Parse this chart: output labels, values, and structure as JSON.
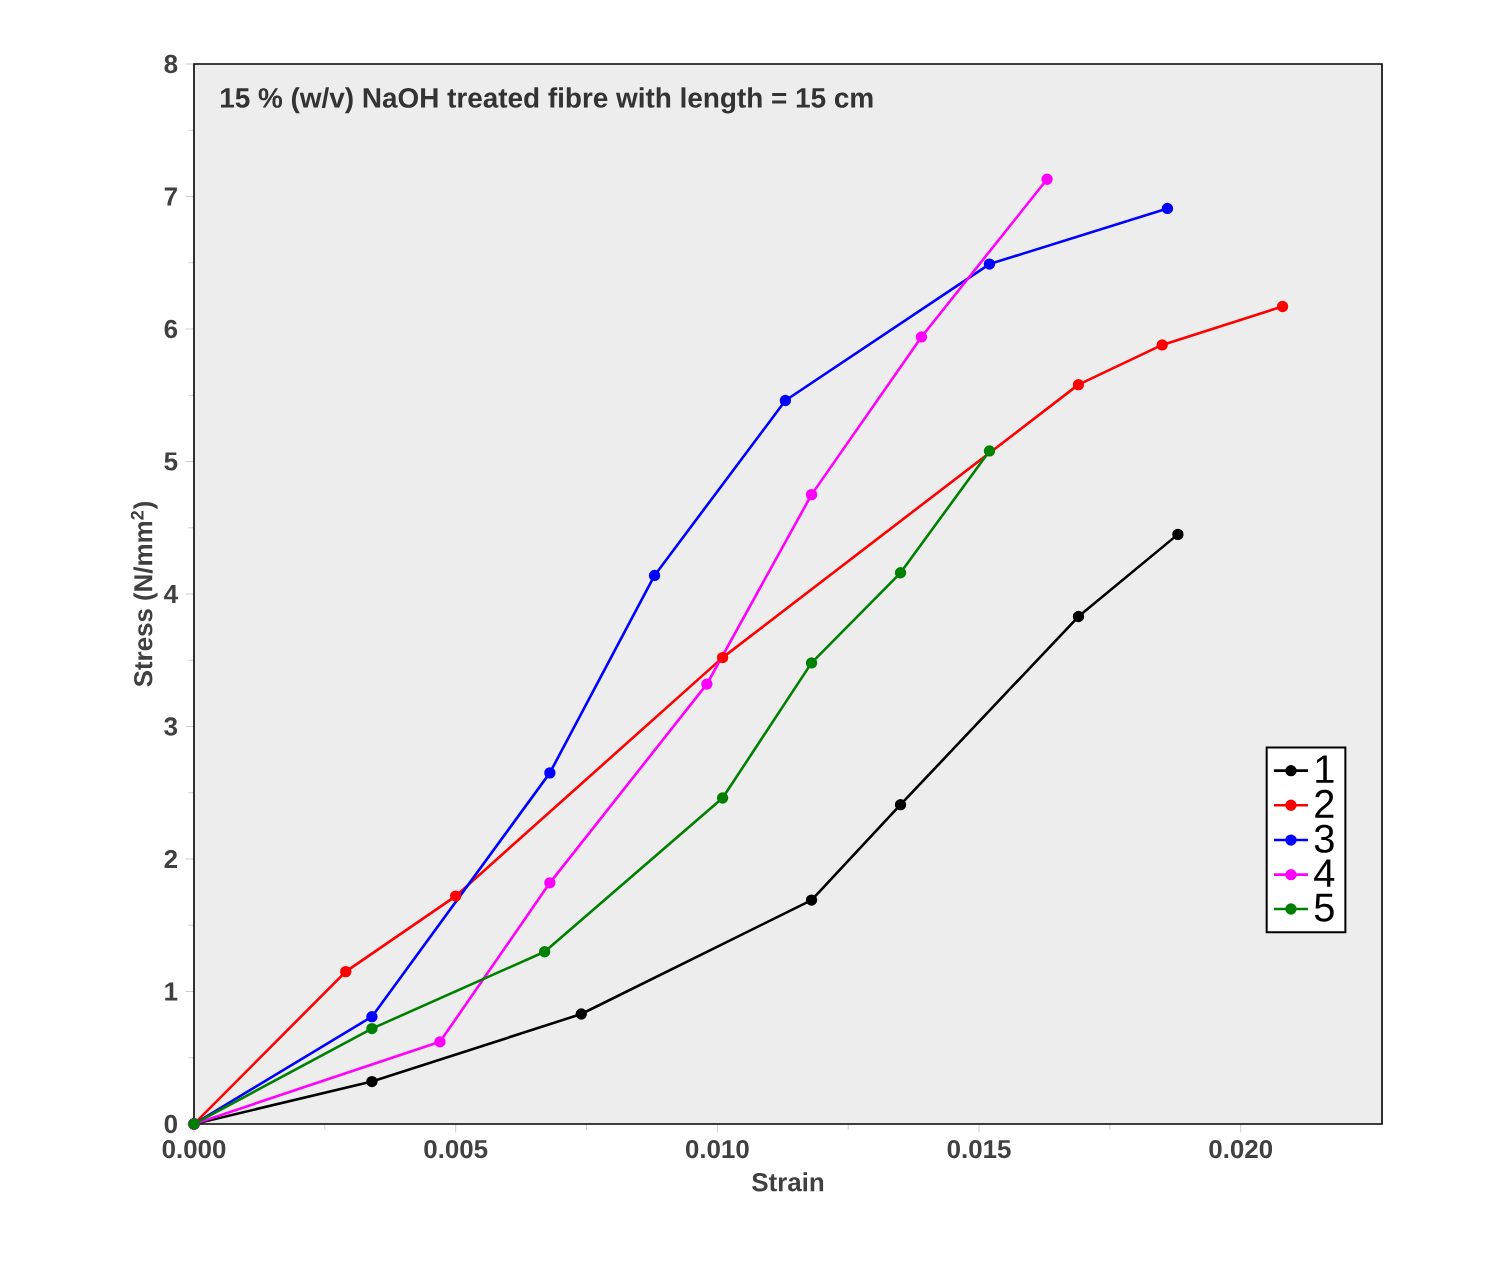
{
  "chart_data": {
    "type": "line",
    "title": "15 % (w/v) NaOH treated fibre with length = 15 cm",
    "xlabel": "Strain",
    "ylabel": "Stress (N/mm$^{2}$)",
    "xlim": [
      0,
      0.0227
    ],
    "xticks": [
      {
        "value": 0,
        "label": "0.000"
      },
      0.005,
      {
        "value": 0.01,
        "label": "0.010"
      },
      0.015,
      {
        "value": 0.02,
        "label": "0.020"
      }
    ],
    "ylim": [
      0,
      8
    ],
    "yticks": [
      0,
      1,
      2,
      3,
      4,
      5,
      6,
      7,
      8
    ],
    "grid": false,
    "legend": "bottom right",
    "marker": "circle",
    "line_style": "solid",
    "series": [
      {
        "name": "1",
        "color": "#000000",
        "x": [
          0,
          0.0034,
          0.0074,
          0.0118,
          0.0135,
          0.0169,
          0.0188
        ],
        "values": [
          0,
          0.32,
          0.83,
          1.69,
          2.41,
          3.83,
          4.45
        ]
      },
      {
        "name": "2",
        "color": "#ff0000",
        "x": [
          0,
          0.0029,
          0.005,
          0.0101,
          0.0169,
          0.0185,
          0.0208
        ],
        "values": [
          0,
          1.15,
          1.72,
          3.52,
          5.58,
          5.88,
          6.17
        ]
      },
      {
        "name": "3",
        "color": "#0000ff",
        "x": [
          0,
          0.0034,
          0.0068,
          0.0088,
          0.0113,
          0.0152,
          0.0186
        ],
        "values": [
          0,
          0.81,
          2.65,
          4.14,
          5.46,
          6.49,
          6.91
        ]
      },
      {
        "name": "4",
        "color": "#ff00ff",
        "x": [
          0,
          0.0047,
          0.0068,
          0.0098,
          0.0118,
          0.0139,
          0.0163
        ],
        "values": [
          0,
          0.62,
          1.82,
          3.32,
          4.75,
          5.94,
          7.13
        ]
      },
      {
        "name": "5",
        "color": "#008000",
        "x": [
          0,
          0.0034,
          0.0067,
          0.0101,
          0.0118,
          0.0135,
          0.0152
        ],
        "values": [
          0,
          0.72,
          1.3,
          2.46,
          3.48,
          4.16,
          5.08
        ]
      }
    ]
  }
}
